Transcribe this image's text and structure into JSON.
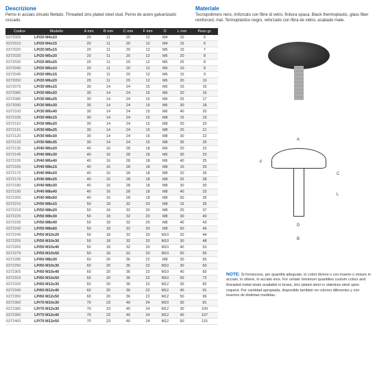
{
  "header": {
    "desc_title": "Descrizione",
    "desc_text": "Perno in acciaio zincato filettato.\nThreaded zinc plated steel stud.\nPerno de acero galvanizado roscado.",
    "mat_title": "Materiale",
    "mat_text": "Tecnopolimero nero, rinforzato con fibre di vetro, finitura opaca.\nBlack thermoplastic, glass fiber reinforced, mat.\nTermoplástico negro, reforzado con fibra de vidrio, acabado mate."
  },
  "table": {
    "headers": [
      "Codice",
      "Modello",
      "A mm",
      "B mm",
      "C mm",
      "F mm",
      "D",
      "L mm",
      "Peso gr."
    ],
    "rows": [
      [
        "6372005",
        "LP/20 M4x10",
        "20",
        "11",
        "20",
        "12",
        "M4",
        "10",
        "6"
      ],
      [
        "6372010",
        "LP/20 M4x15",
        "20",
        "11",
        "20",
        "12",
        "M4",
        "15",
        "6"
      ],
      [
        "6372020",
        "LP/20 M5x15",
        "20",
        "11",
        "20",
        "12",
        "M5",
        "15",
        "7"
      ],
      [
        "6372025",
        "LP/20 M5x20",
        "20",
        "11",
        "20",
        "12",
        "M5",
        "20",
        "8"
      ],
      [
        "6372030",
        "LP/20 M5x25",
        "20",
        "11",
        "20",
        "12",
        "M5",
        "25",
        "8"
      ],
      [
        "6372040",
        "LP/20 M6x10",
        "20",
        "11",
        "20",
        "12",
        "M6",
        "10",
        "8"
      ],
      [
        "6372045",
        "LP/20 M6x15",
        "20",
        "11",
        "20",
        "12",
        "M6",
        "15",
        "9"
      ],
      [
        "6372050",
        "LP/20 M6x20",
        "20",
        "11",
        "20",
        "12",
        "M6",
        "20",
        "10"
      ],
      [
        "6372075",
        "LP/30 M6x15",
        "30",
        "14",
        "24",
        "15",
        "M6",
        "15",
        "15"
      ],
      [
        "6372080",
        "LP/30 M6x20",
        "30",
        "14",
        "24",
        "15",
        "M6",
        "20",
        "16"
      ],
      [
        "6372085",
        "LP/30 M6x25",
        "30",
        "14",
        "24",
        "15",
        "M6",
        "25",
        "17"
      ],
      [
        "6372090",
        "LP/30 M6x30",
        "30",
        "14",
        "24",
        "15",
        "M6",
        "30",
        "18"
      ],
      [
        "6372100",
        "LP/30 M6x40",
        "30",
        "14",
        "24",
        "15",
        "M6",
        "40",
        "20"
      ],
      [
        "6372105",
        "LP/30 M8x15",
        "30",
        "14",
        "24",
        "15",
        "M8",
        "15",
        "19"
      ],
      [
        "6372110",
        "LP/30 M8x20",
        "30",
        "14",
        "24",
        "15",
        "M8",
        "20",
        "20"
      ],
      [
        "6372115",
        "LP/30 M8x25",
        "30",
        "14",
        "24",
        "15",
        "M8",
        "25",
        "21"
      ],
      [
        "6372120",
        "LP/30 M8x30",
        "30",
        "14",
        "24",
        "15",
        "M8",
        "30",
        "22"
      ],
      [
        "6372125",
        "LP/30 M8x35",
        "30",
        "14",
        "24",
        "15",
        "M8",
        "35",
        "25"
      ],
      [
        "6372135",
        "LP/40 M6x20",
        "40",
        "16",
        "28",
        "18",
        "M6",
        "20",
        "22"
      ],
      [
        "6372145",
        "LP/40 M6x30",
        "40",
        "16",
        "28",
        "18",
        "M6",
        "30",
        "23"
      ],
      [
        "6372155",
        "LP/40 M6x40",
        "40",
        "16",
        "28",
        "18",
        "M6",
        "40",
        "25"
      ],
      [
        "6372165",
        "LP/40 M8x15",
        "40",
        "16",
        "28",
        "18",
        "M8",
        "15",
        "25"
      ],
      [
        "6372170",
        "LP/40 M8x20",
        "40",
        "16",
        "28",
        "18",
        "M8",
        "20",
        "26"
      ],
      [
        "6372175",
        "LP/40 M8x25",
        "40",
        "16",
        "28",
        "18",
        "M8",
        "25",
        "28"
      ],
      [
        "6372180",
        "LP/40 M8x30",
        "40",
        "16",
        "28",
        "18",
        "M8",
        "30",
        "30"
      ],
      [
        "6372190",
        "LP/40 M8x40",
        "40",
        "16",
        "28",
        "18",
        "M8",
        "40",
        "33"
      ],
      [
        "6372200",
        "LP/40 M8x50",
        "40",
        "16",
        "28",
        "18",
        "M8",
        "50",
        "35"
      ],
      [
        "6372210",
        "LP/50 M8x15",
        "50",
        "18",
        "32",
        "20",
        "M8",
        "15",
        "35"
      ],
      [
        "6372215",
        "LP/50 M8x20",
        "50",
        "18",
        "32",
        "20",
        "M8",
        "20",
        "37"
      ],
      [
        "6372225",
        "LP/50 M8x30",
        "50",
        "18",
        "32",
        "20",
        "M8",
        "30",
        "40"
      ],
      [
        "6372235",
        "LP/50 M8x40",
        "50",
        "18",
        "32",
        "20",
        "M8",
        "40",
        "43"
      ],
      [
        "6372242",
        "LP/50 M8x60",
        "50",
        "18",
        "32",
        "20",
        "M8",
        "60",
        "46"
      ],
      [
        "6372245",
        "LP/50 M10x20",
        "50",
        "18",
        "32",
        "20",
        "M10",
        "20",
        "44"
      ],
      [
        "6372255",
        "LP/50 M10x30",
        "50",
        "18",
        "32",
        "20",
        "M10",
        "30",
        "48"
      ],
      [
        "6372265",
        "LP/50 M10x40",
        "50",
        "18",
        "32",
        "20",
        "M10",
        "40",
        "53"
      ],
      [
        "6372275",
        "LP/50 M10x50",
        "50",
        "18",
        "32",
        "20",
        "M10",
        "50",
        "55"
      ],
      [
        "6372285",
        "LP/60 M8x30",
        "60",
        "20",
        "36",
        "22",
        "M8",
        "30",
        "55"
      ],
      [
        "6372290",
        "LP/60 M10x30",
        "60",
        "20",
        "36",
        "22",
        "M10",
        "30",
        "60"
      ],
      [
        "6372305",
        "LP/60 M10x40",
        "60",
        "20",
        "36",
        "22",
        "M10",
        "40",
        "65"
      ],
      [
        "6372315",
        "LP/60 M10x50",
        "60",
        "20",
        "36",
        "22",
        "M10",
        "50",
        "72"
      ],
      [
        "6372320",
        "LP/60 M12x30",
        "60",
        "20",
        "36",
        "22",
        "M12",
        "30",
        "82"
      ],
      [
        "6372340",
        "LP/60 M12x40",
        "60",
        "20",
        "36",
        "22",
        "M12",
        "40",
        "91"
      ],
      [
        "6372350",
        "LP/60 M12x50",
        "60",
        "20",
        "36",
        "22",
        "M12",
        "50",
        "96"
      ],
      [
        "6372360",
        "LP/70 M10x30",
        "70",
        "23",
        "40",
        "24",
        "M10",
        "30",
        "81"
      ],
      [
        "6372380",
        "LP/70 M12x30",
        "70",
        "23",
        "40",
        "24",
        "M12",
        "30",
        "100"
      ],
      [
        "6372390",
        "LP/70 M12x40",
        "70",
        "23",
        "40",
        "24",
        "M12",
        "40",
        "107"
      ],
      [
        "6372400",
        "LP/70 M12x50",
        "70",
        "23",
        "40",
        "24",
        "M12",
        "50",
        "115"
      ]
    ]
  },
  "diagram_labels": {
    "A": "A",
    "F": "F",
    "C": "C",
    "L": "L",
    "D": "D",
    "B": "B"
  },
  "note": {
    "title": "NOTE:",
    "text": "Si forniscono, per quantità adeguate, in colori diversi o con inserto o misure in acciaio, in ottone, in acciaio inox.\nFor certain minimum quantities custom colors and threaded metal studs available in brass, zinc plated steel or stainless steel upon request.\nPor cantidad apropiada, disponible también en colores diferentes y con insertos de distintas medidas."
  }
}
